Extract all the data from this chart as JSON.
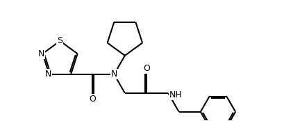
{
  "background_color": "#ffffff",
  "line_color": "#000000",
  "line_width": 1.5,
  "font_size": 9,
  "fig_width": 4.22,
  "fig_height": 1.74,
  "dpi": 100,
  "xlim": [
    -0.5,
    11.5
  ],
  "ylim": [
    -1.0,
    4.5
  ]
}
